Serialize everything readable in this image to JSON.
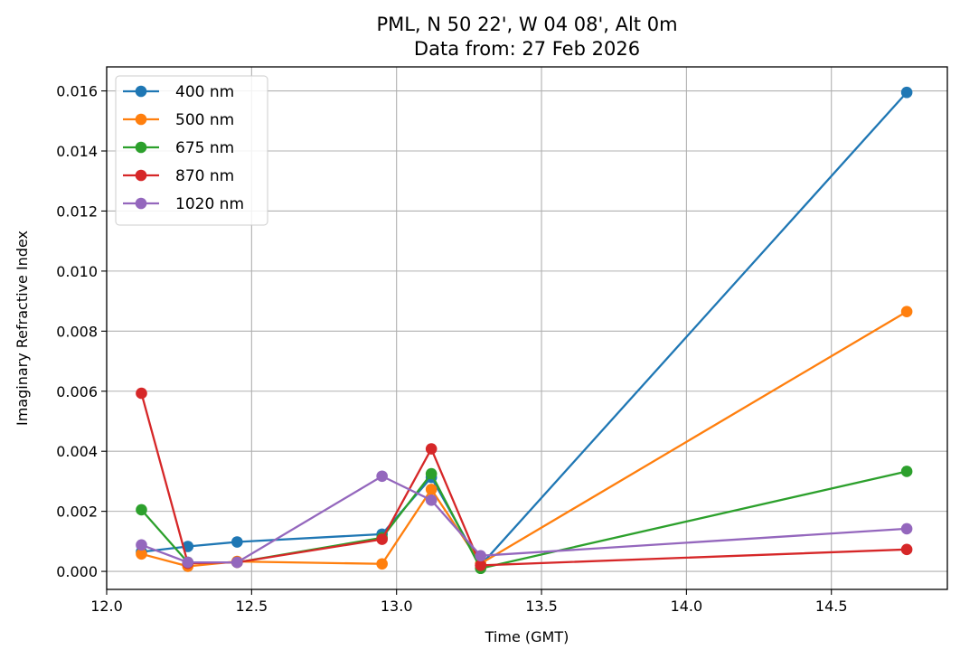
{
  "chart_data": {
    "type": "line",
    "title": "PML, N 50 22', W 04 08', Alt 0m",
    "subtitle": "Data from: 27 Feb 2026",
    "xlabel": "Time (GMT)",
    "ylabel": "Imaginary Refractive Index",
    "xlim": [
      12.0,
      14.9
    ],
    "ylim": [
      -0.0006,
      0.0168
    ],
    "xticks": [
      "12.0",
      "12.5",
      "13.0",
      "13.5",
      "14.0",
      "14.5"
    ],
    "yticks": [
      "0.000",
      "0.002",
      "0.004",
      "0.006",
      "0.008",
      "0.010",
      "0.012",
      "0.014",
      "0.016"
    ],
    "grid": true,
    "legend_position": "top-left",
    "x": [
      12.12,
      12.28,
      12.45,
      12.95,
      13.12,
      13.29,
      14.76
    ],
    "series": [
      {
        "name": "400 nm",
        "color": "#1f77b4",
        "values": [
          0.00065,
          0.00083,
          0.00098,
          0.00124,
          0.00313,
          0.0002,
          0.01595
        ]
      },
      {
        "name": "500 nm",
        "color": "#ff7f0e",
        "values": [
          0.00058,
          0.00017,
          0.00033,
          0.00025,
          0.00273,
          0.00026,
          0.00865
        ]
      },
      {
        "name": "675 nm",
        "color": "#2ca02c",
        "values": [
          0.00205,
          0.0003,
          0.0003,
          0.00112,
          0.00325,
          0.0001,
          0.00333
        ]
      },
      {
        "name": "870 nm",
        "color": "#d62728",
        "values": [
          0.00593,
          0.00027,
          0.0003,
          0.00107,
          0.00408,
          0.0002,
          0.00073
        ]
      },
      {
        "name": "1020 nm",
        "color": "#9467bd",
        "values": [
          0.00088,
          0.0003,
          0.0003,
          0.00317,
          0.00237,
          0.00052,
          0.00142
        ]
      }
    ]
  }
}
